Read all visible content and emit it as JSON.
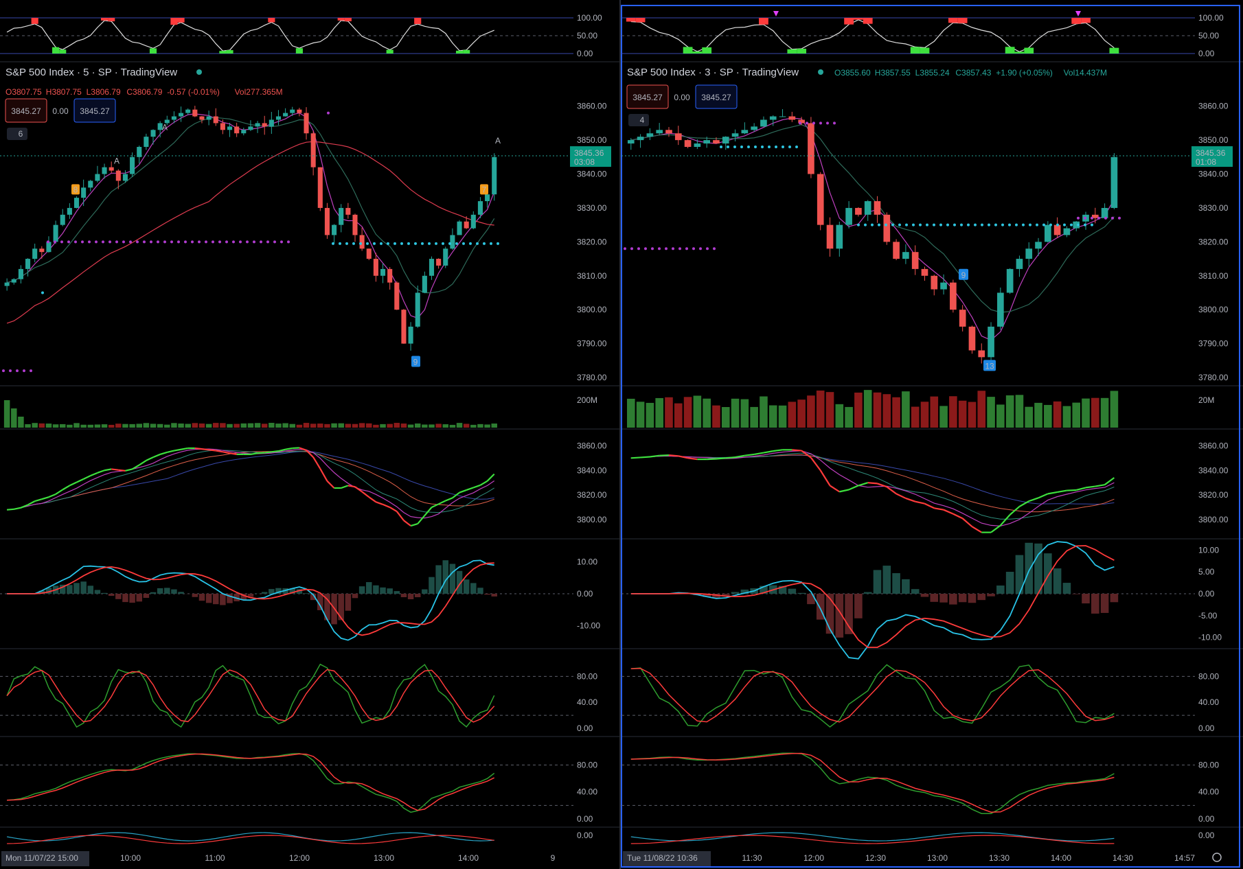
{
  "colors": {
    "background": "#000000",
    "up": "#26a69a",
    "down": "#ef5350",
    "purple": "#b03ccf",
    "cyan": "#2ec5e0",
    "green_line": "#3ee03e",
    "red_line": "#ff3b3b",
    "panel_border_active": "#2962ff",
    "grid_dash": "#5d606b"
  },
  "left_panel": {
    "title": "S&P 500 Index · 5 · SP · TradingView",
    "ohlc": {
      "o": "O3807.75",
      "h": "H3807.75",
      "l": "L3806.79",
      "c": "C3806.79",
      "chg": "-0.57 (-0.01%)",
      "vol": "Vol277.365M"
    },
    "box_red": "3845.27",
    "box_mid": "0.00",
    "box_blue": "3845.27",
    "collapse_count": "6",
    "price_label": "3845.36",
    "price_timer": "03:08",
    "price_axis": [
      "3860.00",
      "3850.00",
      "3840.00",
      "3830.00",
      "3820.00",
      "3810.00",
      "3800.00",
      "3790.00",
      "3780.00"
    ],
    "vol_axis": [
      "200M"
    ],
    "ma_axis": [
      "3860.00",
      "3840.00",
      "3820.00",
      "3800.00"
    ],
    "macd_axis": [
      "10.00",
      "0.00",
      "-10.00"
    ],
    "osc1_axis": [
      "80.00",
      "40.00",
      "0.00"
    ],
    "osc2_axis": [
      "80.00",
      "40.00",
      "0.00"
    ],
    "bottom_axis": [
      "0.00"
    ],
    "rsi_axis": [
      "100.00",
      "50.00",
      "0.00"
    ],
    "time_labels": [
      "10:00",
      "11:00",
      "12:00",
      "13:00",
      "14:00",
      "9"
    ],
    "time_badge": "Mon 11/07/22   15:00",
    "markers": {
      "a": "A",
      "nine": "9",
      "seven": "7",
      "eight": "8"
    }
  },
  "right_panel": {
    "title": "S&P 500 Index · 3 · SP · TradingView",
    "ohlc": {
      "o": "O3855.60",
      "h": "H3857.55",
      "l": "L3855.24",
      "c": "C3857.43",
      "chg": "+1.90 (+0.05%)",
      "vol": "Vol14.437M"
    },
    "box_red": "3845.27",
    "box_mid": "0.00",
    "box_blue": "3845.27",
    "collapse_count": "4",
    "price_label": "3845.36",
    "price_timer": "01:08",
    "price_axis": [
      "3860.00",
      "3850.00",
      "3840.00",
      "3830.00",
      "3820.00",
      "3810.00",
      "3800.00",
      "3790.00",
      "3780.00"
    ],
    "vol_axis": [
      "20M"
    ],
    "ma_axis": [
      "3860.00",
      "3840.00",
      "3820.00",
      "3800.00"
    ],
    "macd_axis": [
      "10.00",
      "5.00",
      "0.00",
      "-5.00",
      "-10.00"
    ],
    "osc1_axis": [
      "80.00",
      "40.00",
      "0.00"
    ],
    "osc2_axis": [
      "80.00",
      "40.00",
      "0.00"
    ],
    "bottom_axis": [
      "0.00"
    ],
    "rsi_axis": [
      "100.00",
      "50.00",
      "0.00"
    ],
    "time_labels": [
      "11:30",
      "12:00",
      "12:30",
      "13:00",
      "13:30",
      "14:00",
      "14:30",
      "14:57"
    ],
    "time_badge": "Tue 11/08/22   10:36",
    "markers": {
      "nine": "9",
      "thirteen": "13"
    }
  },
  "chart_data": [
    {
      "type": "candlestick",
      "title": "S&P 500 Index · 5 · SP",
      "x_range": [
        "09:30",
        "14:45"
      ],
      "y_range": [
        3780,
        3865
      ],
      "closes": [
        3808,
        3809,
        3812,
        3815,
        3818,
        3817,
        3820,
        3825,
        3828,
        3830,
        3833,
        3836,
        3838,
        3840,
        3842,
        3841,
        3838,
        3840,
        3845,
        3848,
        3851,
        3853,
        3855,
        3856,
        3857,
        3858,
        3859,
        3857,
        3856,
        3857,
        3855,
        3853,
        3854,
        3852,
        3853,
        3854,
        3855,
        3854,
        3856,
        3857,
        3858,
        3859,
        3858,
        3852,
        3842,
        3830,
        3822,
        3825,
        3830,
        3828,
        3822,
        3818,
        3815,
        3810,
        3812,
        3808,
        3800,
        3790,
        3795,
        3805,
        3810,
        3815,
        3813,
        3818,
        3822,
        3826,
        3824,
        3828,
        3832,
        3834,
        3845
      ],
      "ylim": [
        3780,
        3865
      ]
    },
    {
      "type": "candlestick",
      "title": "S&P 500 Index · 3 · SP",
      "x_range": [
        "10:36",
        "14:45"
      ],
      "y_range": [
        3780,
        3865
      ],
      "closes": [
        3850,
        3851,
        3852,
        3853,
        3852,
        3850,
        3848,
        3849,
        3850,
        3849,
        3851,
        3852,
        3853,
        3854,
        3856,
        3857,
        3857,
        3856,
        3855,
        3840,
        3825,
        3818,
        3825,
        3830,
        3828,
        3832,
        3828,
        3820,
        3815,
        3817,
        3812,
        3810,
        3806,
        3808,
        3800,
        3795,
        3788,
        3786,
        3795,
        3805,
        3812,
        3815,
        3818,
        3820,
        3825,
        3822,
        3824,
        3826,
        3828,
        3827,
        3830,
        3845
      ],
      "ylim": [
        3780,
        3865
      ]
    }
  ]
}
